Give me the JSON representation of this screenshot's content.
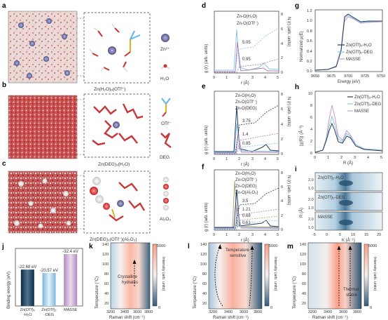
{
  "panels": {
    "a": {
      "letter": "a",
      "caption": "Zn(H₂O)₆(OTf⁺)",
      "ion_label": "Zn²⁺",
      "mol_label": "H₂O"
    },
    "b": {
      "letter": "b",
      "caption": "Zn(DEG)₃(H₂O)",
      "mol1_label": "OTf⁻",
      "mol2_label": "DEG"
    },
    "c": {
      "letter": "c",
      "caption": "Zn(DEG)₂(OTf⁻)(Al₂O₃)",
      "mol_label": "Al₂O₃"
    },
    "d": {
      "letter": "d",
      "legend": [
        "Zn-O(H₂O)",
        "Zn-O(OTf⁻)"
      ],
      "values": [
        "5.05",
        "0.95"
      ],
      "ylabel": "g (r) (arb. units)",
      "y2label": "N (r) (arb. units)",
      "xlabel": "r (Å)",
      "y2ticks": [
        "8",
        "6",
        "4",
        "2",
        "0"
      ],
      "xticks": [
        "0",
        "1",
        "2",
        "3",
        "4",
        "5"
      ]
    },
    "e": {
      "letter": "e",
      "legend": [
        "Zn-O(H₂O)",
        "Zn-O(OTf⁻)",
        "Zn-O(DEG)"
      ],
      "values": [
        "3.75",
        "1.4",
        "0.85"
      ],
      "ylabel": "g (r) (arb. units)",
      "y2label": "N (r) (arb. units)",
      "xlabel": "r (Å)",
      "y2ticks": [
        "8",
        "6",
        "4",
        "2",
        "0"
      ],
      "xticks": [
        "0",
        "1",
        "2",
        "3",
        "4",
        "5"
      ]
    },
    "f": {
      "letter": "f",
      "legend": [
        "Zn-O(H₂O)",
        "Zn-O(OTf⁻)",
        "Zn-O(DEG)",
        "Zn-O(Al₂O₃)"
      ],
      "values": [
        "3.5",
        "1.21",
        "0.68",
        "0.61"
      ],
      "ylabel": "g (r) (arb. units)",
      "y2label": "N (r) (arb. units)",
      "xlabel": "r (Å)",
      "y2ticks": [
        "8",
        "6",
        "4",
        "2",
        "0"
      ],
      "xticks": [
        "0",
        "1",
        "2",
        "3",
        "4",
        "5"
      ]
    },
    "g": {
      "letter": "g",
      "legend": [
        "Zn(OTf)₂-H₂O",
        "Zn(OTf)₂-DEG",
        "MASSE"
      ],
      "ylabel": "Normalized μ(E)",
      "xlabel": "Energy (eV)",
      "yticks": [
        "1.2",
        "1.0",
        "0.8",
        "0.6",
        "0.4",
        "0.2",
        "0.0"
      ],
      "xticks": [
        "9650",
        "9675",
        "9700",
        "9725",
        "9750"
      ]
    },
    "h": {
      "letter": "h",
      "legend": [
        "Zn(OTf)₂-H₂O",
        "Zn(OTf)₂-DEG",
        "MASSE"
      ],
      "ylabel": "|χ(R)| (Å⁻³)",
      "xlabel": "R (Å)",
      "yticks": [
        "10",
        "8",
        "6",
        "4",
        "2",
        "0"
      ],
      "xticks": [
        "0",
        "1",
        "2",
        "3",
        "4",
        "5"
      ]
    },
    "i": {
      "letter": "i",
      "labels": [
        "Zn(OTf)₂-H₂O",
        "Zn(OTf)₂-DEG",
        "MASSE"
      ],
      "ylabel": "R (Å)",
      "xlabel": "K (Å⁻¹)",
      "yticks": [
        "2.0",
        "1.0"
      ],
      "xticks": [
        "-5",
        "0",
        "5",
        "10",
        "15",
        "20"
      ]
    },
    "j": {
      "letter": "j",
      "ylabel": "Binding energy (eV)",
      "ann": "Zn(OTf)₂ -H₂O"
    },
    "k": {
      "letter": "k",
      "annotation": [
        "Crystalline",
        "hydrates"
      ]
    },
    "l": {
      "letter": "l",
      "annotation": [
        "Temperature",
        "sensitive"
      ]
    },
    "m": {
      "letter": "m",
      "annotation": [
        "Thermal",
        "stable"
      ]
    },
    "raman": {
      "ylabel": "Temperature (°C)",
      "xlabel": "Raman shift (cm⁻¹)",
      "colorbar_label": "Intensity (arb. units)",
      "cb_top": "5000",
      "cb_bottom": "0",
      "yticks": [
        "140",
        "120",
        "100",
        "80",
        "60",
        "40",
        "20"
      ],
      "xticks": [
        "3200",
        "3400",
        "3600",
        "3800"
      ]
    }
  },
  "chart_data": [
    {
      "type": "bar",
      "panel": "j",
      "categories": [
        "Zn(OTf)₂-H₂O",
        "Zn(OTf)₂-DEG",
        "MASSE"
      ],
      "values": [
        -22.68,
        -20.57,
        -32.4
      ],
      "value_labels": [
        "-22.68 eV",
        "-20.57 eV",
        "-32.4 eV"
      ],
      "cat_lines": [
        [
          "Zn(OTf)₂",
          "-H₂O"
        ],
        [
          "Zn(OTf)₂",
          "-DEG"
        ],
        [
          "MASSE"
        ]
      ],
      "colors": [
        "#1f3f5a",
        "#9ccae8",
        "#c8a3cf"
      ],
      "ylim": [
        0,
        -35
      ]
    }
  ],
  "colors": {
    "h2o": "#1f3b5c",
    "deg": "#8fc3e3",
    "masse": "#c49bc9",
    "otf": "#b07cb6",
    "al": "#a4a87a",
    "zn": "#5d5f93"
  }
}
